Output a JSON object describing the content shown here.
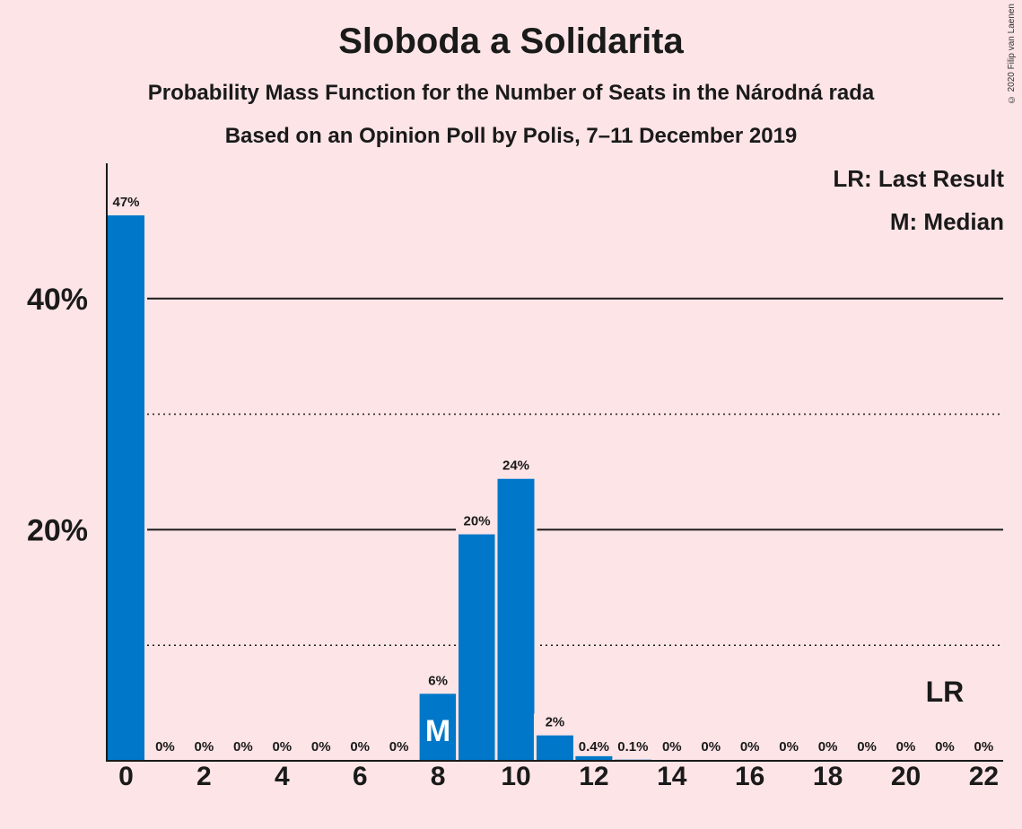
{
  "header": {
    "title": "Sloboda a Solidarita",
    "subtitle1": "Probability Mass Function for the Number of Seats in the Národná rada",
    "subtitle2": "Based on an Opinion Poll by Polis, 7–11 December 2019",
    "copyright": "© 2020 Filip van Laenen"
  },
  "legend": {
    "last_result": "LR: Last Result",
    "median": "M: Median"
  },
  "colors": {
    "background": "#fde4e6",
    "bar": "#0077c8",
    "text": "#1a1a1a"
  },
  "chart_data": {
    "type": "bar",
    "categories": [
      "0",
      "1",
      "2",
      "3",
      "4",
      "5",
      "6",
      "7",
      "8",
      "9",
      "10",
      "11",
      "12",
      "13",
      "14",
      "15",
      "16",
      "17",
      "18",
      "19",
      "20",
      "21",
      "22"
    ],
    "values": [
      47.2,
      0,
      0,
      0,
      0,
      0,
      0,
      0,
      5.8,
      19.6,
      24.4,
      2.2,
      0.4,
      0.1,
      0,
      0,
      0,
      0,
      0,
      0,
      0,
      0,
      0
    ],
    "data_labels": [
      "47%",
      "0%",
      "0%",
      "0%",
      "0%",
      "0%",
      "0%",
      "0%",
      "6%",
      "20%",
      "24%",
      "2%",
      "0.4%",
      "0.1%",
      "0%",
      "0%",
      "0%",
      "0%",
      "0%",
      "0%",
      "0%",
      "0%",
      "0%"
    ],
    "x_tick_labels": [
      "0",
      "2",
      "4",
      "6",
      "8",
      "10",
      "12",
      "14",
      "16",
      "18",
      "20",
      "22"
    ],
    "y_tick_labels": [
      "20%",
      "40%"
    ],
    "ylim": [
      0,
      51.5
    ],
    "major_gridlines": [
      20,
      40
    ],
    "minor_gridlines": [
      10,
      30
    ],
    "median_seat": 8,
    "median_marker": "M",
    "last_result_seat": 21,
    "last_result_marker": "LR"
  }
}
